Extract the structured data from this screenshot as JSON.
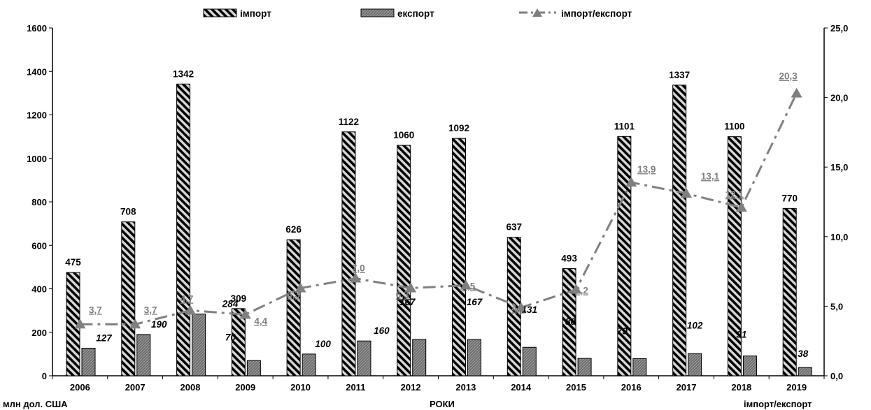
{
  "chart_data": {
    "type": "bar",
    "categories": [
      "2006",
      "2007",
      "2008",
      "2009",
      "2010",
      "2011",
      "2012",
      "2013",
      "2014",
      "2015",
      "2016",
      "2017",
      "2018",
      "2019"
    ],
    "series": [
      {
        "name": "імпорт",
        "axis": "left",
        "kind": "bar",
        "pattern": "diagonal-stripes",
        "values": [
          475,
          708,
          1342,
          309,
          626,
          1122,
          1060,
          1092,
          637,
          493,
          1101,
          1337,
          1100,
          770
        ]
      },
      {
        "name": "експорт",
        "axis": "left",
        "kind": "bar",
        "pattern": "dark-hatch",
        "values": [
          127,
          190,
          284,
          70,
          100,
          160,
          167,
          167,
          131,
          80,
          79,
          102,
          91,
          38
        ]
      },
      {
        "name": "імпорт/експорт",
        "axis": "right",
        "kind": "line",
        "style": "dash-dot",
        "marker": "triangle",
        "values": [
          3.7,
          3.7,
          4.7,
          4.4,
          6.3,
          7.0,
          6.3,
          6.5,
          4.9,
          6.2,
          13.9,
          13.1,
          12.1,
          20.3
        ],
        "labels": [
          "3,7",
          "3,7",
          "4,7",
          "4,4",
          "6,3",
          "7,0",
          "6,3",
          "6,5",
          "4,9",
          "6,2",
          "13,9",
          "13,1",
          "12,1",
          "20,3"
        ]
      }
    ],
    "ylim_left": [
      0,
      1600
    ],
    "ylim_right": [
      0,
      25
    ],
    "yticks_left": [
      "0",
      "200",
      "400",
      "600",
      "800",
      "1000",
      "1200",
      "1400",
      "1600"
    ],
    "yticks_right": [
      "0,0",
      "5,0",
      "10,0",
      "15,0",
      "20,0",
      "25,0"
    ],
    "ylabel_left": "млн дол. США",
    "xlabel": "РОКИ",
    "ylabel_right": "імпорт/експорт",
    "legend_position": "top",
    "grid": false,
    "colors": {
      "import_stripe": "#000000",
      "import_bg": "#d9d9d9",
      "export_fill": "#7f7f7f",
      "ratio_line": "#808080"
    }
  }
}
